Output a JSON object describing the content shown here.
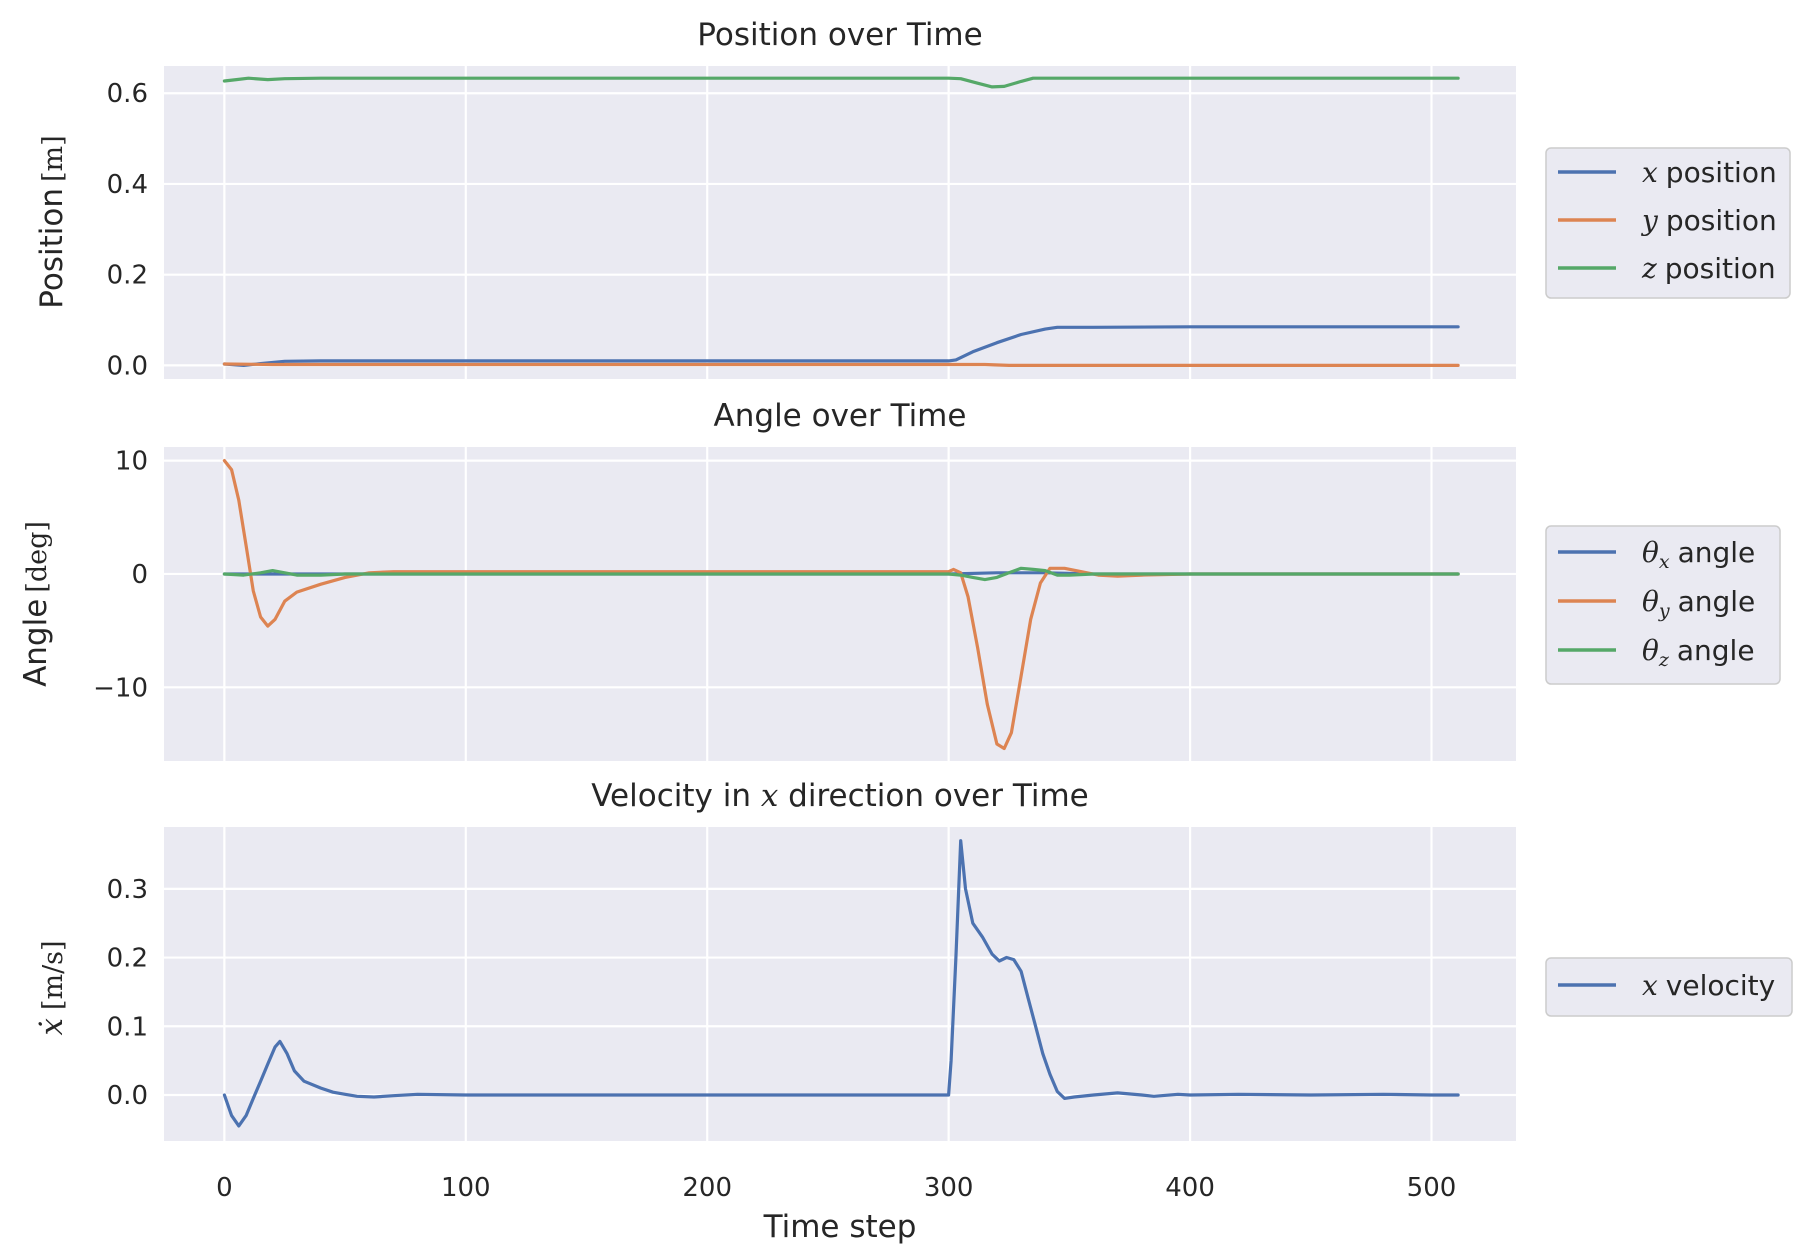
{
  "figure": {
    "background": "#ffffff",
    "panel_background": "#eaeaf2",
    "grid_color": "#ffffff",
    "text_color": "#262626",
    "xlabel": "Time step",
    "xticks": [
      "0",
      "100",
      "200",
      "300",
      "400",
      "500"
    ]
  },
  "chart_data": [
    {
      "type": "line",
      "title": "Position over Time",
      "ylabel": {
        "text": "Position",
        "unit": "[m]"
      },
      "xlim": [
        -25,
        535
      ],
      "ylim": [
        -0.03,
        0.66
      ],
      "xtick_values": [
        0,
        100,
        200,
        300,
        400,
        500
      ],
      "ytick_values": [
        0.0,
        0.2,
        0.4,
        0.6
      ],
      "ytick_labels": [
        "0.0",
        "0.2",
        "0.4",
        "0.6"
      ],
      "grid": true,
      "legend_placement": "right-outside",
      "series": [
        {
          "name": "x position",
          "symbol": "x",
          "label": "position",
          "color": "#4c72b0",
          "points": [
            [
              0,
              0.003
            ],
            [
              8,
              0.0
            ],
            [
              15,
              0.004
            ],
            [
              25,
              0.009
            ],
            [
              40,
              0.01
            ],
            [
              100,
              0.01
            ],
            [
              200,
              0.01
            ],
            [
              300,
              0.01
            ],
            [
              303,
              0.012
            ],
            [
              310,
              0.03
            ],
            [
              320,
              0.05
            ],
            [
              330,
              0.068
            ],
            [
              340,
              0.08
            ],
            [
              345,
              0.084
            ],
            [
              360,
              0.084
            ],
            [
              400,
              0.085
            ],
            [
              450,
              0.085
            ],
            [
              511,
              0.085
            ]
          ]
        },
        {
          "name": "y position",
          "symbol": "y",
          "label": "position",
          "color": "#dd8452",
          "points": [
            [
              0,
              0.003
            ],
            [
              20,
              0.002
            ],
            [
              100,
              0.002
            ],
            [
              200,
              0.002
            ],
            [
              300,
              0.002
            ],
            [
              315,
              0.002
            ],
            [
              325,
              0.0
            ],
            [
              340,
              0.0
            ],
            [
              400,
              0.0
            ],
            [
              511,
              0.0
            ]
          ]
        },
        {
          "name": "z position",
          "symbol": "z",
          "label": "position",
          "color": "#55a868",
          "points": [
            [
              0,
              0.627
            ],
            [
              5,
              0.63
            ],
            [
              10,
              0.633
            ],
            [
              18,
              0.63
            ],
            [
              25,
              0.632
            ],
            [
              40,
              0.633
            ],
            [
              100,
              0.633
            ],
            [
              200,
              0.633
            ],
            [
              300,
              0.633
            ],
            [
              305,
              0.632
            ],
            [
              312,
              0.622
            ],
            [
              318,
              0.614
            ],
            [
              323,
              0.615
            ],
            [
              330,
              0.626
            ],
            [
              335,
              0.633
            ],
            [
              360,
              0.633
            ],
            [
              450,
              0.633
            ],
            [
              511,
              0.633
            ]
          ]
        }
      ]
    },
    {
      "type": "line",
      "title": "Angle over Time",
      "ylabel": {
        "text": "Angle",
        "unit": "[deg]"
      },
      "xlim": [
        -25,
        535
      ],
      "ylim": [
        -16.5,
        11.2
      ],
      "xtick_values": [
        0,
        100,
        200,
        300,
        400,
        500
      ],
      "ytick_values": [
        -10,
        0,
        10
      ],
      "ytick_labels": [
        "−10",
        "0",
        "10"
      ],
      "grid": true,
      "legend_placement": "right-outside",
      "series": [
        {
          "name": "θx angle",
          "symbol": "θ",
          "sub": "x",
          "label": "angle",
          "color": "#4c72b0",
          "points": [
            [
              0,
              0.0
            ],
            [
              100,
              0.0
            ],
            [
              200,
              0.0
            ],
            [
              300,
              0.0
            ],
            [
              320,
              0.1
            ],
            [
              340,
              0.1
            ],
            [
              360,
              0.0
            ],
            [
              511,
              0.0
            ]
          ]
        },
        {
          "name": "θy angle",
          "symbol": "θ",
          "sub": "y",
          "label": "angle",
          "color": "#dd8452",
          "points": [
            [
              0,
              10.0
            ],
            [
              3,
              9.2
            ],
            [
              6,
              6.5
            ],
            [
              9,
              2.5
            ],
            [
              12,
              -1.5
            ],
            [
              15,
              -3.8
            ],
            [
              18,
              -4.6
            ],
            [
              21,
              -4.0
            ],
            [
              25,
              -2.4
            ],
            [
              30,
              -1.6
            ],
            [
              40,
              -0.9
            ],
            [
              50,
              -0.3
            ],
            [
              60,
              0.1
            ],
            [
              70,
              0.2
            ],
            [
              100,
              0.2
            ],
            [
              200,
              0.2
            ],
            [
              300,
              0.2
            ],
            [
              302,
              0.4
            ],
            [
              305,
              0.1
            ],
            [
              308,
              -2.0
            ],
            [
              312,
              -6.5
            ],
            [
              316,
              -11.5
            ],
            [
              320,
              -15.0
            ],
            [
              323,
              -15.4
            ],
            [
              326,
              -14.0
            ],
            [
              330,
              -9.0
            ],
            [
              334,
              -4.0
            ],
            [
              338,
              -0.8
            ],
            [
              342,
              0.5
            ],
            [
              348,
              0.5
            ],
            [
              355,
              0.2
            ],
            [
              362,
              -0.1
            ],
            [
              370,
              -0.2
            ],
            [
              380,
              -0.1
            ],
            [
              400,
              0.0
            ],
            [
              511,
              0.0
            ]
          ]
        },
        {
          "name": "θz angle",
          "symbol": "θ",
          "sub": "z",
          "label": "angle",
          "color": "#55a868",
          "points": [
            [
              0,
              0.0
            ],
            [
              8,
              -0.1
            ],
            [
              15,
              0.1
            ],
            [
              20,
              0.3
            ],
            [
              25,
              0.1
            ],
            [
              30,
              -0.1
            ],
            [
              40,
              -0.1
            ],
            [
              50,
              0.0
            ],
            [
              100,
              0.0
            ],
            [
              200,
              0.0
            ],
            [
              300,
              0.0
            ],
            [
              305,
              -0.1
            ],
            [
              310,
              -0.3
            ],
            [
              315,
              -0.5
            ],
            [
              320,
              -0.3
            ],
            [
              325,
              0.1
            ],
            [
              330,
              0.5
            ],
            [
              335,
              0.4
            ],
            [
              340,
              0.3
            ],
            [
              345,
              -0.1
            ],
            [
              350,
              -0.1
            ],
            [
              360,
              0.0
            ],
            [
              511,
              0.0
            ]
          ]
        }
      ]
    },
    {
      "type": "line",
      "title": "Velocity in x direction over Time",
      "title_parts": [
        "Velocity in ",
        "x",
        " direction over Time"
      ],
      "ylabel": {
        "text": "ẋ",
        "unit": "[m/s]"
      },
      "xlim": [
        -25,
        535
      ],
      "ylim": [
        -0.067,
        0.39
      ],
      "xtick_values": [
        0,
        100,
        200,
        300,
        400,
        500
      ],
      "ytick_values": [
        0.0,
        0.1,
        0.2,
        0.3
      ],
      "ytick_labels": [
        "0.0",
        "0.1",
        "0.2",
        "0.3"
      ],
      "grid": true,
      "legend_placement": "right-outside",
      "series": [
        {
          "name": "x velocity",
          "symbol": "x",
          "label": "velocity",
          "color": "#4c72b0",
          "points": [
            [
              0,
              0.0
            ],
            [
              3,
              -0.03
            ],
            [
              6,
              -0.045
            ],
            [
              9,
              -0.03
            ],
            [
              12,
              -0.005
            ],
            [
              15,
              0.02
            ],
            [
              18,
              0.045
            ],
            [
              21,
              0.07
            ],
            [
              23,
              0.078
            ],
            [
              26,
              0.06
            ],
            [
              29,
              0.035
            ],
            [
              33,
              0.02
            ],
            [
              40,
              0.01
            ],
            [
              45,
              0.004
            ],
            [
              50,
              0.001
            ],
            [
              55,
              -0.002
            ],
            [
              62,
              -0.003
            ],
            [
              70,
              -0.001
            ],
            [
              80,
              0.001
            ],
            [
              100,
              0.0
            ],
            [
              200,
              0.0
            ],
            [
              300,
              0.0
            ],
            [
              301,
              0.05
            ],
            [
              303,
              0.2
            ],
            [
              305,
              0.37
            ],
            [
              307,
              0.3
            ],
            [
              310,
              0.25
            ],
            [
              314,
              0.23
            ],
            [
              318,
              0.205
            ],
            [
              321,
              0.195
            ],
            [
              324,
              0.2
            ],
            [
              327,
              0.197
            ],
            [
              330,
              0.18
            ],
            [
              333,
              0.14
            ],
            [
              336,
              0.1
            ],
            [
              339,
              0.06
            ],
            [
              342,
              0.03
            ],
            [
              345,
              0.005
            ],
            [
              348,
              -0.005
            ],
            [
              352,
              -0.003
            ],
            [
              360,
              0.0
            ],
            [
              370,
              0.003
            ],
            [
              380,
              0.0
            ],
            [
              385,
              -0.002
            ],
            [
              395,
              0.001
            ],
            [
              400,
              0.0
            ],
            [
              420,
              0.001
            ],
            [
              450,
              0.0
            ],
            [
              480,
              0.001
            ],
            [
              500,
              0.0
            ],
            [
              511,
              0.0
            ]
          ]
        }
      ]
    }
  ]
}
